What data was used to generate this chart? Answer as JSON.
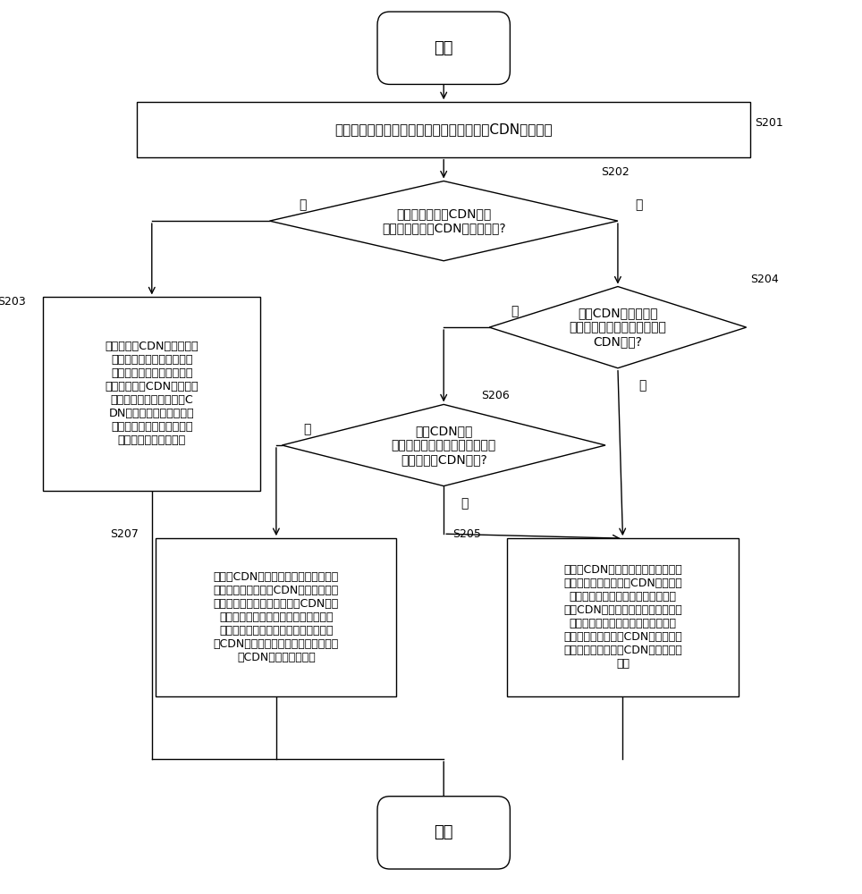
{
  "bg_color": "#ffffff",
  "line_color": "#000000",
  "text_color": "#000000",
  "start_label": "开始",
  "end_label": "结束",
  "s201_label": "根据所获取的源站的信息，获取相应的回源CDN节点列表",
  "s201_tag": "S201",
  "s202_label": "用户请求达到的CDN节点\n存在于所述回源CDN节点列表中?",
  "s202_tag": "S202",
  "s202_yes": "是",
  "s202_no": "否",
  "s203_label": "从所述回源CDN节点列表中\n选取网络折算时延等级最小\n的节点集，并从所述节点集\n中选取相应的CDN节点，构\n成所述用户请求所到达的C\nDN节点的回源路由，所述\n网络折算时延等级与网络丢\n包率和网络时延相关联",
  "s203_tag": "S203",
  "s204_label": "回源CDN节点列表中\n存在负载小于第一负载阈值的\nCDN节点?",
  "s204_tag": "S204",
  "s204_yes": "是",
  "s204_no": "否",
  "s206_label": "回源CDN节点\n列表中存在负载小于预设的第二\n负载阈值的CDN节点?",
  "s206_tag": "S206",
  "s206_yes": "是",
  "s206_no": "否",
  "s207_label": "从回源CDN节点列表中选取负载小于预\n设的第二负载阈值的CDN节点，从负载\n小于预设的第二负载阈值中的CDN节点\n中选取网络折算时延等级最小的节点构\n成节点集，并从所述节点集中选取相应\n的CDN节点，构成所述用户请求所到达\n的CDN节点的回源路由",
  "s207_tag": "S207",
  "s205_label": "从回源CDN节点列表中选取负载小于\n预设的第一负载阈值的CDN节点，从\n所选取的负载小于预设的第一负载阈\n值的CDN节点中选取网络折算时延等\n级最小的节点构成节点集，并从所述\n节点集中选取相应的CDN节点，作为\n所述用户请求到达的CDN节点的回源\n路由",
  "s205_tag": "S205"
}
